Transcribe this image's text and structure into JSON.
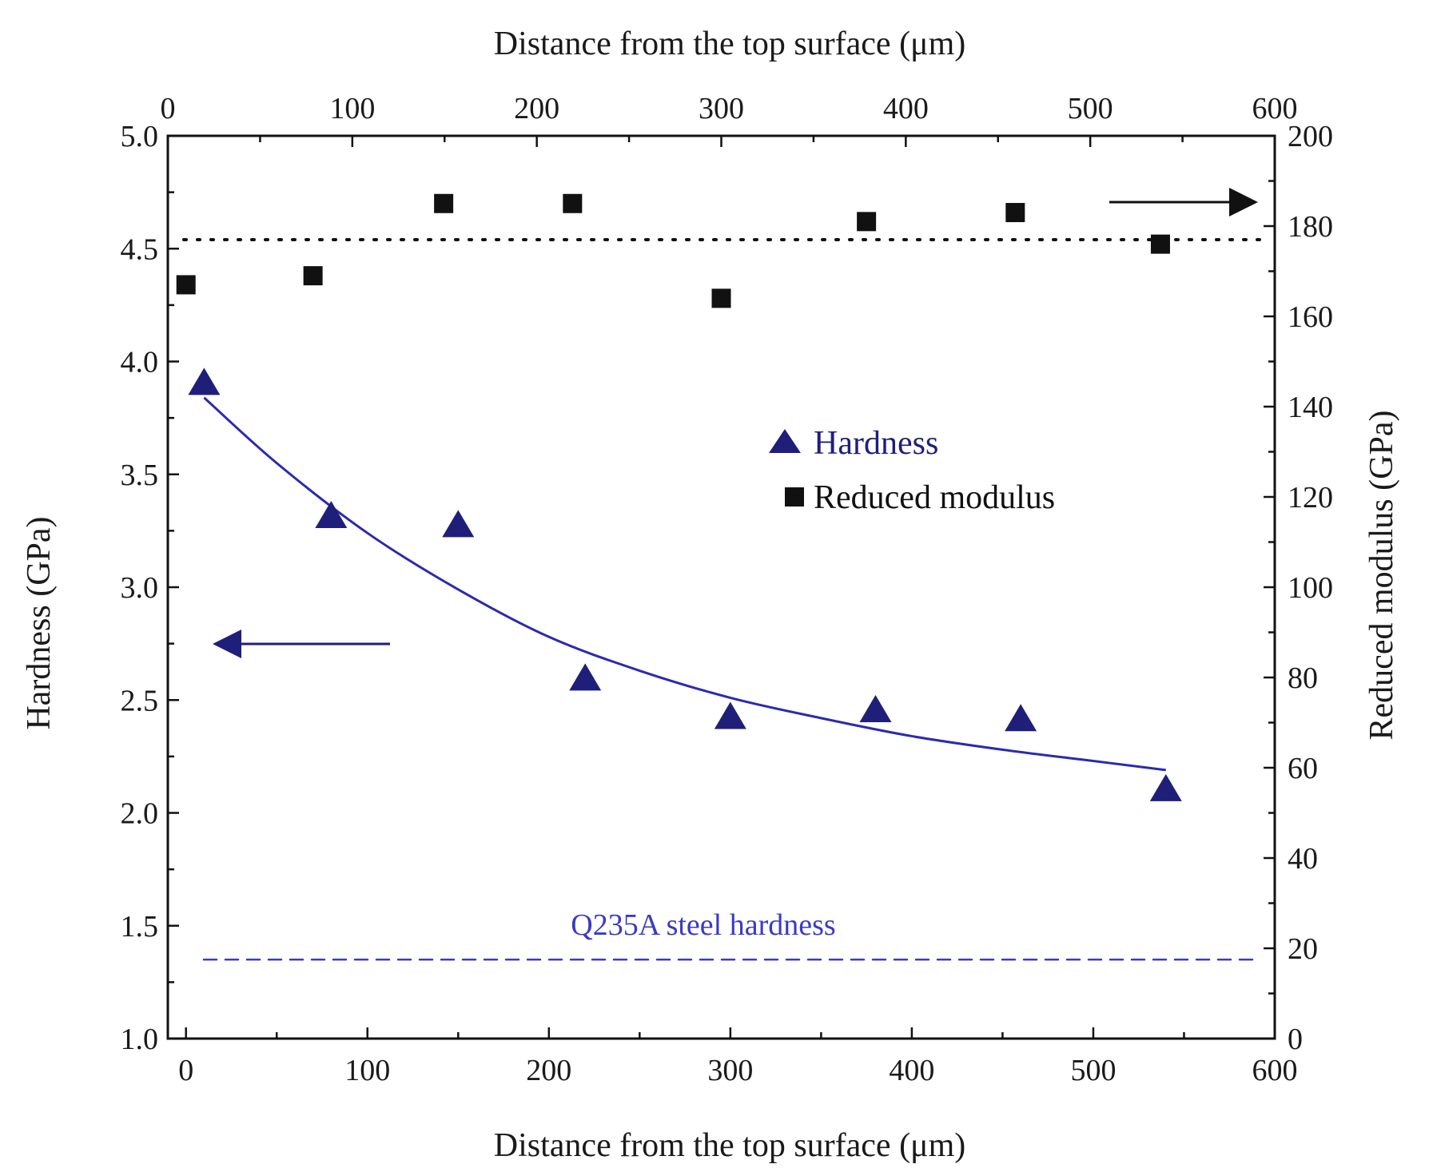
{
  "chart_data": {
    "type": "scatter",
    "x_label_bottom": "Distance from the top surface (μm)",
    "x_label_top": "Distance from the top surface (μm)",
    "y_label_left": "Hardness (GPa)",
    "y_label_right": "Reduced modulus (GPa)",
    "xlim": [
      -10,
      600
    ],
    "x_top_lim": [
      0,
      600
    ],
    "ylim_left": [
      1.0,
      5.0
    ],
    "ylim_right": [
      0,
      200
    ],
    "x_ticks": [
      0,
      100,
      200,
      300,
      400,
      500,
      600
    ],
    "x_top_ticks": [
      0,
      100,
      200,
      300,
      400,
      500,
      600
    ],
    "y_left_ticks": [
      1.0,
      1.5,
      2.0,
      2.5,
      3.0,
      3.5,
      4.0,
      4.5,
      5.0
    ],
    "y_left_tick_labels": [
      "1.0",
      "1.5",
      "2.0",
      "2.5",
      "3.0",
      "3.5",
      "4.0",
      "4.5",
      "5.0"
    ],
    "y_right_ticks": [
      0,
      20,
      40,
      60,
      80,
      100,
      120,
      140,
      160,
      180,
      200
    ],
    "series": [
      {
        "name": "Hardness",
        "axis": "left",
        "marker": "triangle",
        "color": "#1f1f7a",
        "x": [
          10,
          80,
          150,
          220,
          300,
          380,
          460,
          540
        ],
        "y": [
          3.9,
          3.31,
          3.27,
          2.59,
          2.42,
          2.45,
          2.41,
          2.1
        ]
      },
      {
        "name": "Reduced modulus",
        "axis": "right",
        "marker": "square",
        "color": "#111111",
        "x": [
          0,
          70,
          142,
          213,
          295,
          375,
          457,
          537
        ],
        "y": [
          167,
          169,
          185,
          185,
          164,
          181,
          183,
          176
        ]
      }
    ],
    "fit_curve": {
      "series": "Hardness",
      "color": "#2a2ab0",
      "x": [
        10,
        50,
        100,
        150,
        200,
        250,
        300,
        350,
        400,
        450,
        500,
        540
      ],
      "y": [
        3.84,
        3.55,
        3.24,
        2.99,
        2.78,
        2.63,
        2.51,
        2.42,
        2.34,
        2.28,
        2.23,
        2.19
      ]
    },
    "reference_lines": [
      {
        "label": "",
        "axis": "right",
        "value": 177,
        "style": "dotted",
        "color": "#111111"
      },
      {
        "label": "Q235A steel hardness",
        "axis": "left",
        "value": 1.35,
        "style": "dashed",
        "color": "#3b3bc0"
      }
    ],
    "annotations": [
      {
        "type": "arrow",
        "direction": "left",
        "meaning": "Hardness uses left axis",
        "color": "#1f1f7a"
      },
      {
        "type": "arrow",
        "direction": "right",
        "meaning": "Reduced modulus uses right axis",
        "color": "#111111"
      }
    ],
    "legend": [
      {
        "label": "Hardness",
        "marker": "triangle",
        "color": "#1f1f7a",
        "text_color": "#1f1f7a"
      },
      {
        "label": "Reduced modulus",
        "marker": "square",
        "color": "#111111",
        "text_color": "#111111"
      }
    ]
  }
}
